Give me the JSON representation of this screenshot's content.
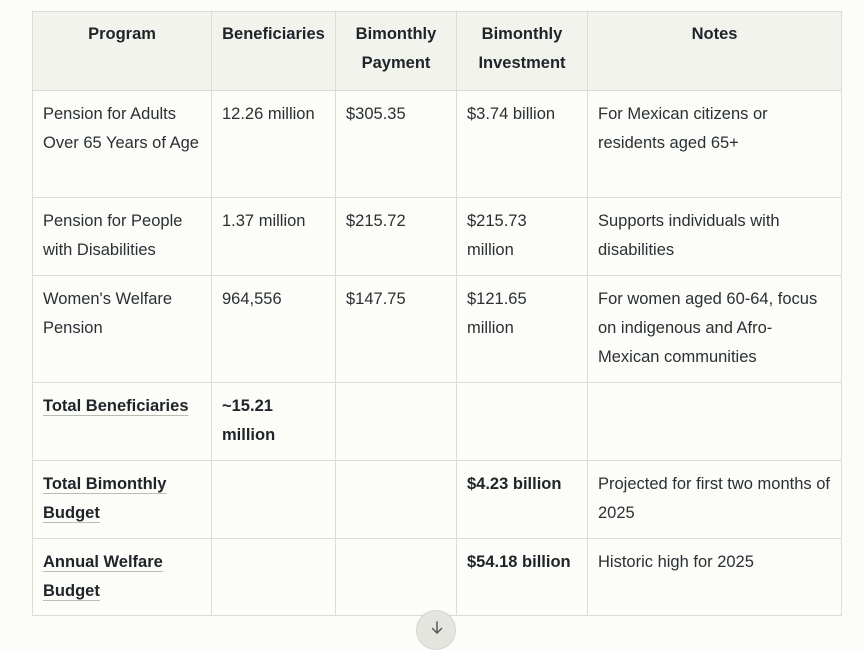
{
  "table": {
    "headers": [
      "Program",
      "Beneficiaries",
      "Bimonthly Payment",
      "Bimonthly Investment",
      "Notes"
    ],
    "rows": [
      [
        "Pension for Adults Over 65 Years of Age",
        "12.26 million",
        "$305.35",
        "$3.74 billion",
        "For Mexican citizens or residents aged 65+"
      ],
      [
        "Pension for People with Disabilities",
        "1.37 million",
        "$215.72",
        "$215.73 million",
        "Supports individuals with disabilities"
      ],
      [
        "Women's Welfare Pension",
        "964,556",
        "$147.75",
        "$121.65 million",
        "For women aged 60-64, focus on indigenous and Afro-Mexican communities"
      ],
      [
        "Total Beneficiaries",
        "~15.21 million",
        "",
        "",
        ""
      ],
      [
        "Total Bimonthly Budget",
        "",
        "",
        "$4.23 billion",
        "Projected for first two months of 2025"
      ],
      [
        "Annual Welfare Budget",
        "",
        "",
        "$54.18 billion",
        "Historic high for 2025"
      ]
    ]
  },
  "scroll_button": {
    "icon": "arrow-down-icon"
  }
}
